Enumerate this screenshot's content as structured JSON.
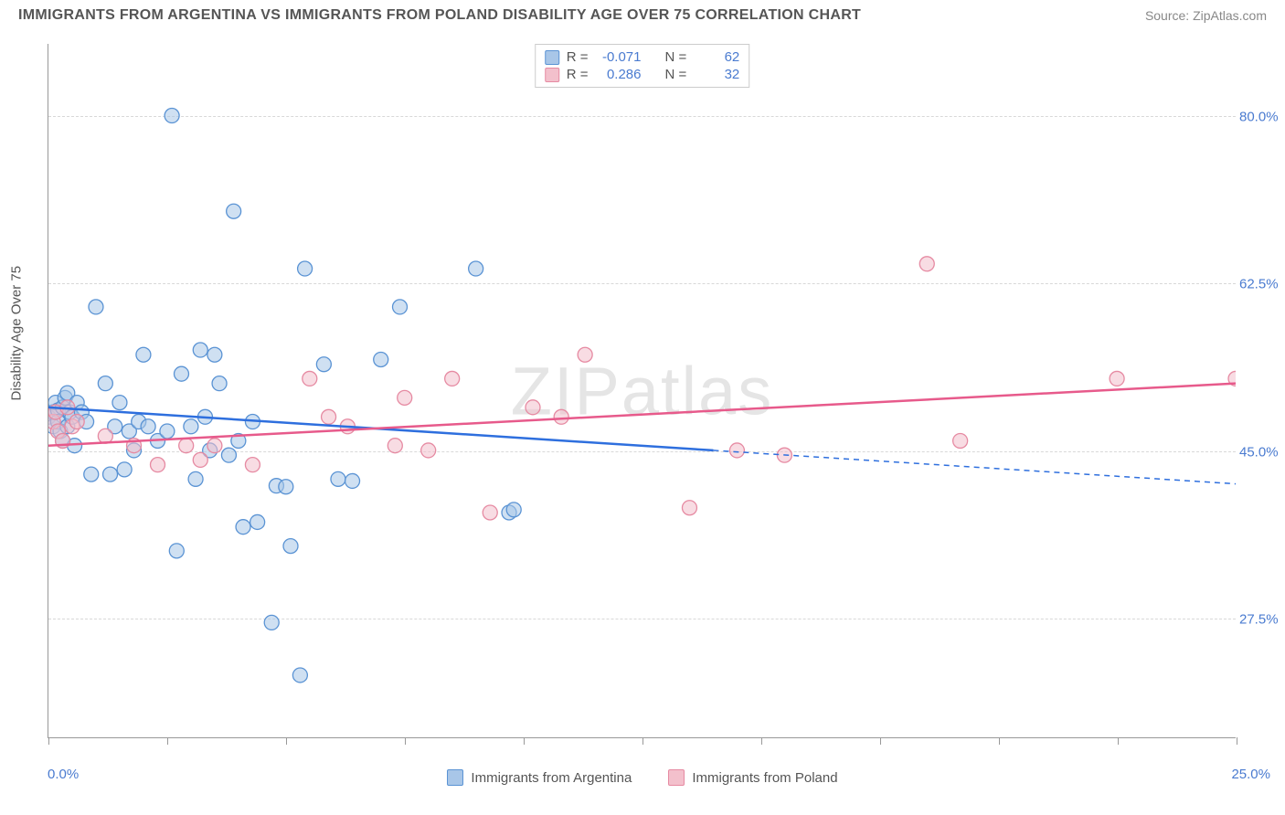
{
  "title": "IMMIGRANTS FROM ARGENTINA VS IMMIGRANTS FROM POLAND DISABILITY AGE OVER 75 CORRELATION CHART",
  "source_label": "Source:",
  "source_name": "ZipAtlas.com",
  "watermark": "ZIPatlas",
  "yaxis_title": "Disability Age Over 75",
  "chart": {
    "type": "scatter",
    "background_color": "#ffffff",
    "grid_color": "#d8d8d8",
    "axis_color": "#999999",
    "label_color": "#4a7bd0",
    "text_color": "#555555",
    "xlim": [
      0,
      25
    ],
    "ylim": [
      15,
      87.5
    ],
    "x_ticks": [
      0,
      2.5,
      5,
      7.5,
      10,
      12.5,
      15,
      17.5,
      20,
      22.5,
      25
    ],
    "y_gridlines": [
      27.5,
      45.0,
      62.5,
      80.0
    ],
    "y_tick_labels": [
      "27.5%",
      "45.0%",
      "62.5%",
      "80.0%"
    ],
    "x_min_label": "0.0%",
    "x_max_label": "25.0%",
    "marker_radius": 8,
    "marker_opacity": 0.55,
    "line_width": 2.5
  },
  "series": [
    {
      "name": "Immigrants from Argentina",
      "color_fill": "#a8c6e8",
      "color_stroke": "#5a93d4",
      "line_color": "#2e6fde",
      "R": "-0.071",
      "N": "62",
      "trend": {
        "x1": 0,
        "y1": 49.5,
        "x2": 14,
        "y2": 45.0,
        "dash_x2": 25,
        "dash_y2": 41.5
      },
      "points": [
        [
          0.0,
          48.5
        ],
        [
          0.1,
          49.0
        ],
        [
          0.1,
          47.5
        ],
        [
          0.15,
          50.0
        ],
        [
          0.2,
          49.2
        ],
        [
          0.2,
          48.0
        ],
        [
          0.25,
          47.0
        ],
        [
          0.3,
          49.5
        ],
        [
          0.3,
          46.0
        ],
        [
          0.35,
          50.5
        ],
        [
          0.4,
          51.0
        ],
        [
          0.4,
          47.5
        ],
        [
          0.45,
          49.0
        ],
        [
          0.5,
          48.5
        ],
        [
          0.55,
          45.5
        ],
        [
          0.6,
          50.0
        ],
        [
          0.7,
          49.0
        ],
        [
          0.8,
          48.0
        ],
        [
          0.9,
          42.5
        ],
        [
          1.0,
          60.0
        ],
        [
          1.2,
          52.0
        ],
        [
          1.3,
          42.5
        ],
        [
          1.4,
          47.5
        ],
        [
          1.5,
          50.0
        ],
        [
          1.6,
          43.0
        ],
        [
          1.7,
          47.0
        ],
        [
          1.8,
          45.0
        ],
        [
          1.9,
          48.0
        ],
        [
          2.0,
          55.0
        ],
        [
          2.1,
          47.5
        ],
        [
          2.3,
          46.0
        ],
        [
          2.5,
          47.0
        ],
        [
          2.6,
          80.0
        ],
        [
          2.7,
          34.5
        ],
        [
          2.8,
          53.0
        ],
        [
          3.0,
          47.5
        ],
        [
          3.1,
          42.0
        ],
        [
          3.2,
          55.5
        ],
        [
          3.3,
          48.5
        ],
        [
          3.4,
          45.0
        ],
        [
          3.5,
          55.0
        ],
        [
          3.6,
          52.0
        ],
        [
          3.8,
          44.5
        ],
        [
          3.9,
          70.0
        ],
        [
          4.0,
          46.0
        ],
        [
          4.1,
          37.0
        ],
        [
          4.3,
          48.0
        ],
        [
          4.4,
          37.5
        ],
        [
          4.7,
          27.0
        ],
        [
          4.8,
          41.3
        ],
        [
          5.0,
          41.2
        ],
        [
          5.1,
          35.0
        ],
        [
          5.3,
          21.5
        ],
        [
          5.4,
          64.0
        ],
        [
          5.8,
          54.0
        ],
        [
          6.1,
          42.0
        ],
        [
          6.4,
          41.8
        ],
        [
          7.0,
          54.5
        ],
        [
          7.4,
          60.0
        ],
        [
          9.0,
          64.0
        ],
        [
          9.7,
          38.5
        ],
        [
          9.8,
          38.8
        ]
      ]
    },
    {
      "name": "Immigrants from Poland",
      "color_fill": "#f3c0cc",
      "color_stroke": "#e68aa2",
      "line_color": "#e75a8b",
      "R": "0.286",
      "N": "32",
      "trend": {
        "x1": 0,
        "y1": 45.5,
        "x2": 25,
        "y2": 52.0
      },
      "points": [
        [
          0.1,
          48.0
        ],
        [
          0.15,
          49.0
        ],
        [
          0.2,
          47.0
        ],
        [
          0.3,
          46.0
        ],
        [
          0.4,
          49.5
        ],
        [
          0.5,
          47.5
        ],
        [
          0.6,
          48.0
        ],
        [
          1.2,
          46.5
        ],
        [
          1.8,
          45.5
        ],
        [
          2.3,
          43.5
        ],
        [
          2.9,
          45.5
        ],
        [
          3.2,
          44.0
        ],
        [
          3.5,
          45.5
        ],
        [
          4.3,
          43.5
        ],
        [
          5.5,
          52.5
        ],
        [
          5.9,
          48.5
        ],
        [
          6.3,
          47.5
        ],
        [
          7.3,
          45.5
        ],
        [
          7.5,
          50.5
        ],
        [
          8.0,
          45.0
        ],
        [
          8.5,
          52.5
        ],
        [
          9.3,
          38.5
        ],
        [
          10.2,
          49.5
        ],
        [
          10.8,
          48.5
        ],
        [
          11.3,
          55.0
        ],
        [
          13.5,
          39.0
        ],
        [
          14.5,
          45.0
        ],
        [
          15.5,
          44.5
        ],
        [
          18.5,
          64.5
        ],
        [
          19.2,
          46.0
        ],
        [
          22.5,
          52.5
        ],
        [
          25.0,
          52.5
        ]
      ]
    }
  ],
  "stats_labels": {
    "R": "R =",
    "N": "N ="
  }
}
